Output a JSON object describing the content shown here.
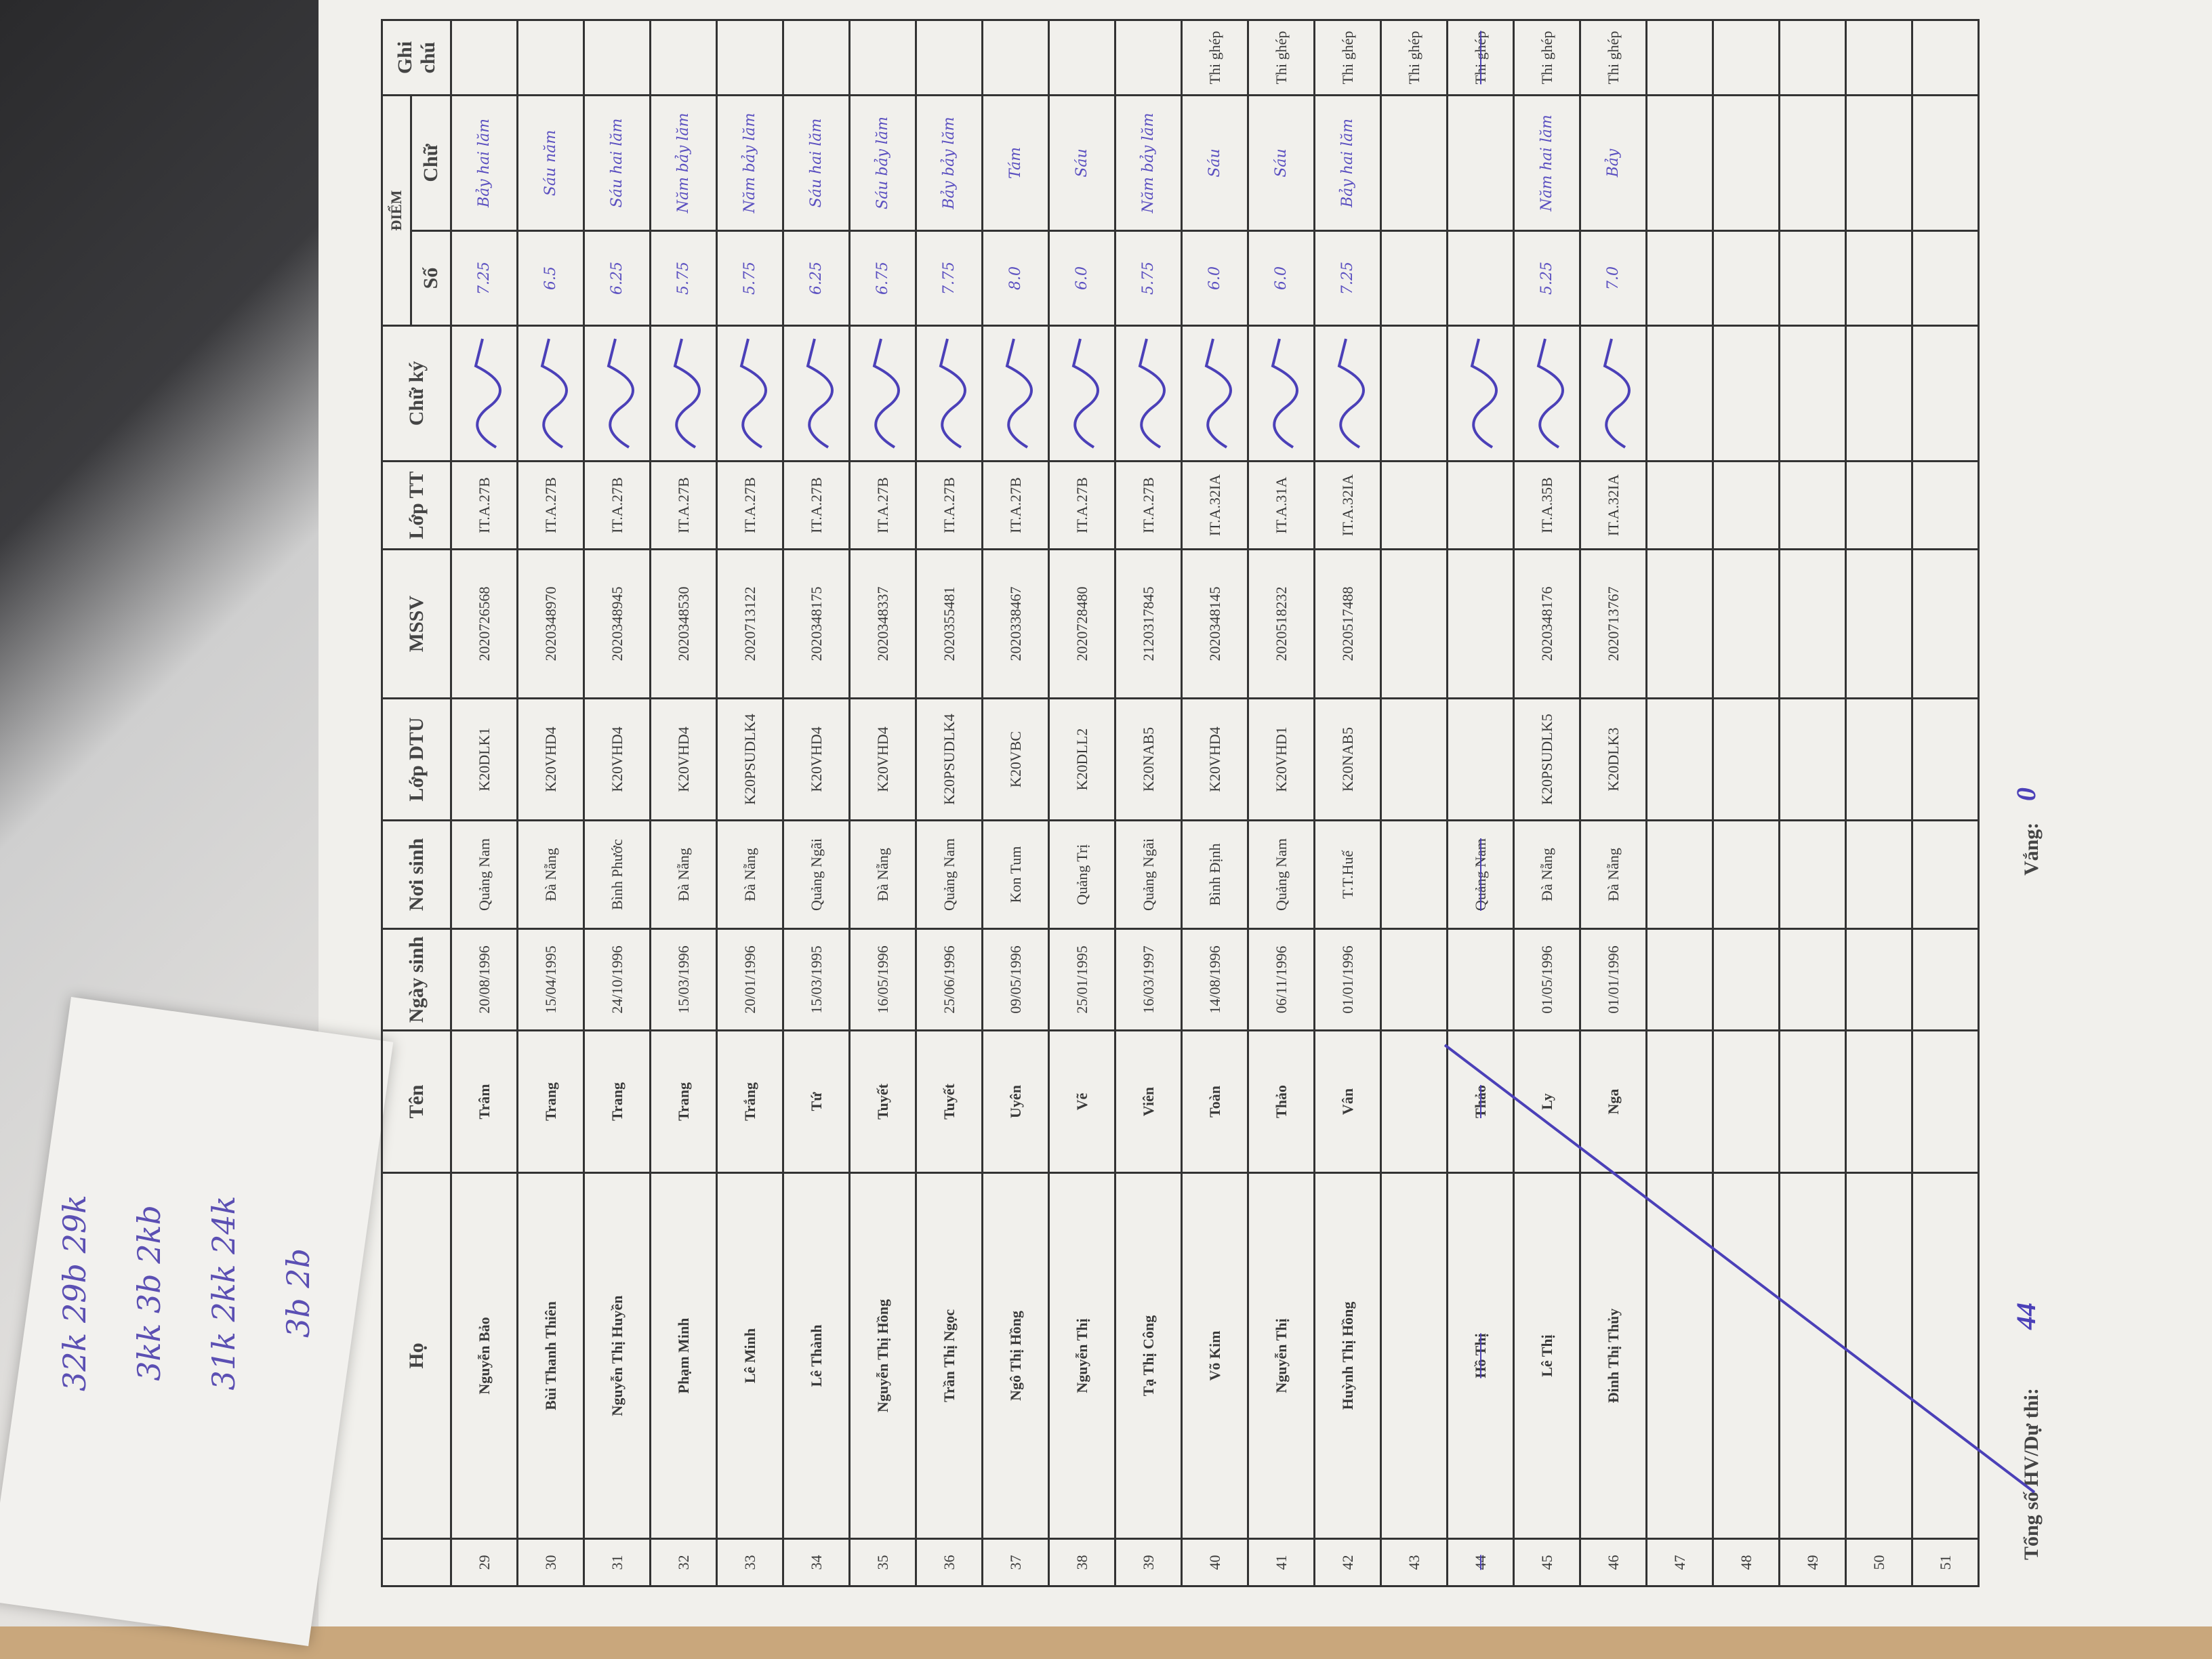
{
  "margin_notes": [
    "32k 29b  29k",
    "3kk 3b 2kb",
    "31k 2kk 24k",
    "3b 2b"
  ],
  "headers": {
    "stt": "",
    "ho": "Họ",
    "ten": "Tên",
    "ngay_sinh": "Ngày sinh",
    "noi_sinh": "Nơi sinh",
    "lop_dtu": "Lớp DTU",
    "mssv": "MSSV",
    "lop_tt": "Lớp TT",
    "chu_ky": "Chữ ký",
    "diem": "ĐIỂM",
    "so": "Số",
    "chu": "Chữ",
    "ghi_chu": "Ghi chú"
  },
  "rows": [
    {
      "stt": "29",
      "ho": "Nguyễn Bảo",
      "ten": "Trâm",
      "ngay_sinh": "20/08/1996",
      "noi_sinh": "Quảng Nam",
      "lop_dtu": "K20DLK1",
      "mssv": "2020726568",
      "lop_tt": "IT.A.27B",
      "so": "7.25",
      "chu": "Bảy hai lăm",
      "ghi_chu": ""
    },
    {
      "stt": "30",
      "ho": "Bùi Thanh Thiên",
      "ten": "Trang",
      "ngay_sinh": "15/04/1995",
      "noi_sinh": "Đà Nẵng",
      "lop_dtu": "K20VHD4",
      "mssv": "2020348970",
      "lop_tt": "IT.A.27B",
      "so": "6.5",
      "chu": "Sáu năm",
      "ghi_chu": ""
    },
    {
      "stt": "31",
      "ho": "Nguyễn Thị Huyền",
      "ten": "Trang",
      "ngay_sinh": "24/10/1996",
      "noi_sinh": "Bình Phước",
      "lop_dtu": "K20VHD4",
      "mssv": "2020348945",
      "lop_tt": "IT.A.27B",
      "so": "6.25",
      "chu": "Sáu hai lăm",
      "ghi_chu": ""
    },
    {
      "stt": "32",
      "ho": "Phạm Minh",
      "ten": "Trang",
      "ngay_sinh": "15/03/1996",
      "noi_sinh": "Đà Nẵng",
      "lop_dtu": "K20VHD4",
      "mssv": "2020348530",
      "lop_tt": "IT.A.27B",
      "so": "5.75",
      "chu": "Năm bảy lăm",
      "ghi_chu": ""
    },
    {
      "stt": "33",
      "ho": "Lê Minh",
      "ten": "Trắng",
      "ngay_sinh": "20/01/1996",
      "noi_sinh": "Đà Nẵng",
      "lop_dtu": "K20PSUDLK4",
      "mssv": "2020713122",
      "lop_tt": "IT.A.27B",
      "so": "5.75",
      "chu": "Năm bảy lăm",
      "ghi_chu": ""
    },
    {
      "stt": "34",
      "ho": "Lê Thành",
      "ten": "Tứ",
      "ngay_sinh": "15/03/1995",
      "noi_sinh": "Quảng Ngãi",
      "lop_dtu": "K20VHD4",
      "mssv": "2020348175",
      "lop_tt": "IT.A.27B",
      "so": "6.25",
      "chu": "Sáu hai lăm",
      "ghi_chu": ""
    },
    {
      "stt": "35",
      "ho": "Nguyễn Thị Hồng",
      "ten": "Tuyết",
      "ngay_sinh": "16/05/1996",
      "noi_sinh": "Đà Nẵng",
      "lop_dtu": "K20VHD4",
      "mssv": "2020348337",
      "lop_tt": "IT.A.27B",
      "so": "6.75",
      "chu": "Sáu bảy lăm",
      "ghi_chu": ""
    },
    {
      "stt": "36",
      "ho": "Trần Thị Ngọc",
      "ten": "Tuyết",
      "ngay_sinh": "25/06/1996",
      "noi_sinh": "Quảng Nam",
      "lop_dtu": "K20PSUDLK4",
      "mssv": "2020355481",
      "lop_tt": "IT.A.27B",
      "so": "7.75",
      "chu": "Bảy bảy lăm",
      "ghi_chu": ""
    },
    {
      "stt": "37",
      "ho": "Ngô Thị Hồng",
      "ten": "Uyên",
      "ngay_sinh": "09/05/1996",
      "noi_sinh": "Kon Tum",
      "lop_dtu": "K20VBC",
      "mssv": "2020338467",
      "lop_tt": "IT.A.27B",
      "so": "8.0",
      "chu": "Tám",
      "ghi_chu": ""
    },
    {
      "stt": "38",
      "ho": "Nguyễn Thị",
      "ten": "Vẽ",
      "ngay_sinh": "25/01/1995",
      "noi_sinh": "Quảng Trị",
      "lop_dtu": "K20DLL2",
      "mssv": "2020728480",
      "lop_tt": "IT.A.27B",
      "so": "6.0",
      "chu": "Sáu",
      "ghi_chu": ""
    },
    {
      "stt": "39",
      "ho": "Tạ Thị Công",
      "ten": "Viên",
      "ngay_sinh": "16/03/1997",
      "noi_sinh": "Quảng Ngãi",
      "lop_dtu": "K20NAB5",
      "mssv": "2120317845",
      "lop_tt": "IT.A.27B",
      "so": "5.75",
      "chu": "Năm bảy lăm",
      "ghi_chu": ""
    },
    {
      "stt": "40",
      "ho": "Võ Kim",
      "ten": "Toàn",
      "ngay_sinh": "14/08/1996",
      "noi_sinh": "Bình Định",
      "lop_dtu": "K20VHD4",
      "mssv": "2020348145",
      "lop_tt": "IT.A.32IA",
      "so": "6.0",
      "chu": "Sáu",
      "ghi_chu": "Thi ghép"
    },
    {
      "stt": "41",
      "ho": "Nguyễn Thị",
      "ten": "Thảo",
      "ngay_sinh": "06/11/1996",
      "noi_sinh": "Quảng Nam",
      "lop_dtu": "K20VHD1",
      "mssv": "2020518232",
      "lop_tt": "IT.A.31A",
      "so": "6.0",
      "chu": "Sáu",
      "ghi_chu": "Thi ghép"
    },
    {
      "stt": "42",
      "ho": "Huỳnh Thị Hồng",
      "ten": "Vân",
      "ngay_sinh": "01/01/1996",
      "noi_sinh": "T.T.Huế",
      "lop_dtu": "K20NAB5",
      "mssv": "2020517488",
      "lop_tt": "IT.A.32IA",
      "so": "7.25",
      "chu": "Bảy hai lăm",
      "ghi_chu": "Thi ghép"
    },
    {
      "stt": "43",
      "ho": "",
      "ten": "",
      "ngay_sinh": "",
      "noi_sinh": "",
      "lop_dtu": "",
      "mssv": "",
      "lop_tt": "",
      "so": "",
      "chu": "",
      "ghi_chu": "Thi ghép"
    },
    {
      "stt": "44",
      "ho": "Hồ Thị",
      "ten": "Thảo",
      "ngay_sinh": "",
      "noi_sinh": "Quảng Nam",
      "lop_dtu": "",
      "mssv": "",
      "lop_tt": "",
      "so": "",
      "chu": "",
      "ghi_chu": "Thi ghép",
      "struck": true
    },
    {
      "stt": "45",
      "ho": "Lê Thị",
      "ten": "Ly",
      "ngay_sinh": "01/05/1996",
      "noi_sinh": "Đà Nẵng",
      "lop_dtu": "K20PSUDLK5",
      "mssv": "2020348176",
      "lop_tt": "IT.A.35B",
      "so": "5.25",
      "chu": "Năm hai lăm",
      "ghi_chu": "Thi ghép"
    },
    {
      "stt": "46",
      "ho": "Đinh Thị Thủy",
      "ten": "Nga",
      "ngay_sinh": "01/01/1996",
      "noi_sinh": "Đà Nẵng",
      "lop_dtu": "K20DLK3",
      "mssv": "2020713767",
      "lop_tt": "IT.A.32IA",
      "so": "7.0",
      "chu": "Bảy",
      "ghi_chu": "Thi ghép"
    },
    {
      "stt": "47"
    },
    {
      "stt": "48"
    },
    {
      "stt": "49"
    },
    {
      "stt": "50"
    },
    {
      "stt": "51"
    }
  ],
  "footer": {
    "total_label": "Tổng số HV/Dự thi:",
    "total_value": "44",
    "absent_label": "Vắng:",
    "absent_value": "0"
  },
  "colors": {
    "ink": "#5a4fc0",
    "paper": "#f1f0ec"
  }
}
